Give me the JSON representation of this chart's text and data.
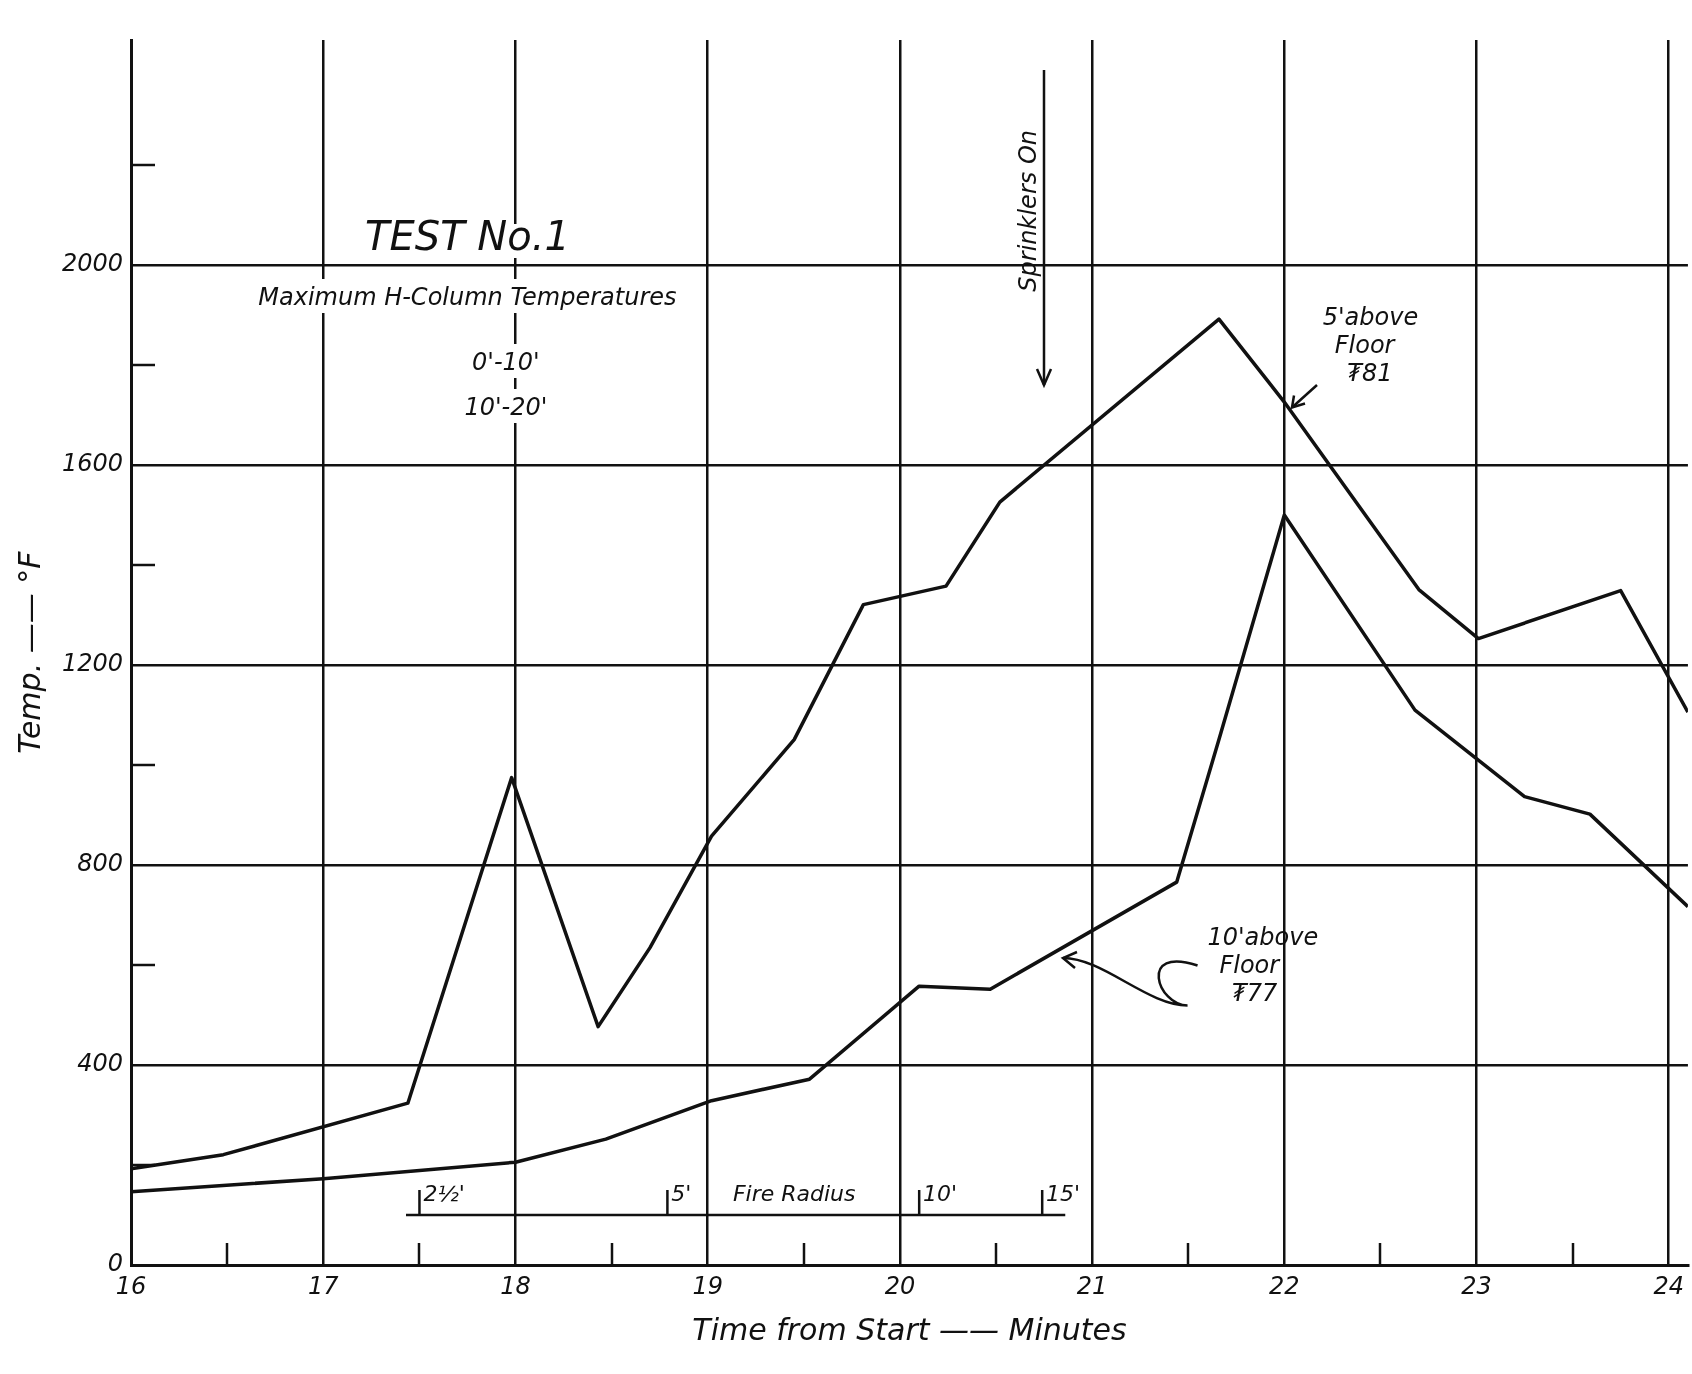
{
  "chart_data": {
    "type": "line",
    "title": "TEST No.1",
    "subtitle": "Maximum H-Column Temperatures",
    "xlabel": "Time from Start —— Minutes",
    "ylabel": "Temp. —— °F",
    "xlim": [
      16,
      24.1
    ],
    "ylim": [
      0,
      2450
    ],
    "xticks": [
      16,
      17,
      18,
      19,
      20,
      21,
      22,
      23,
      24
    ],
    "yticks": [
      0,
      400,
      800,
      1200,
      1600,
      2000
    ],
    "grid": true,
    "legend": false,
    "marker": "none",
    "line_style": "solid",
    "series": [
      {
        "name": "5'above Floor ₮81",
        "color": "#111111",
        "x": [
          16,
          16.48,
          17.44,
          17.98,
          18.43,
          18.7,
          19.02,
          19.45,
          19.81,
          20.24,
          20.52,
          21.66,
          22,
          22.7,
          23.01,
          23.75,
          24.1
        ],
        "values": [
          193,
          221,
          324,
          975,
          477,
          635,
          858,
          1051,
          1321,
          1358,
          1526,
          1892,
          1726,
          1351,
          1253,
          1349,
          1106
        ]
      },
      {
        "name": "10'above Floor ₮77",
        "color": "#111111",
        "x": [
          16,
          17,
          18,
          18.47,
          19.02,
          19.53,
          20.1,
          20.47,
          21.44,
          21.66,
          22,
          22.68,
          23.25,
          23.59,
          24.1
        ],
        "values": [
          147,
          173,
          206,
          252,
          329,
          372,
          558,
          552,
          766,
          1051,
          1500,
          1110,
          937,
          902,
          717
        ]
      }
    ],
    "annotations": [
      "0'-10'",
      "10'-20'",
      "Sprinklers On",
      "2½'",
      "5'",
      "10'",
      "15'",
      "Fire Radius"
    ]
  }
}
